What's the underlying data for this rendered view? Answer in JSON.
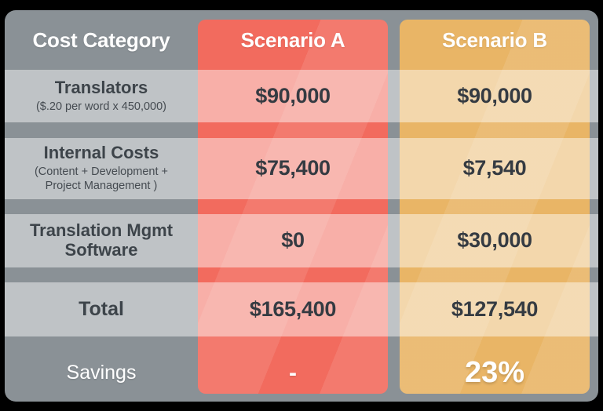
{
  "table": {
    "header": {
      "category": "Cost Category",
      "scenario_a": "Scenario A",
      "scenario_b": "Scenario B"
    },
    "rows": [
      {
        "label": "Translators",
        "sublabel": "($.20 per word x 450,000)",
        "scenario_a": "$90,000",
        "scenario_b": "$90,000"
      },
      {
        "label": "Internal Costs",
        "sublabel": "(Content + Development + Project Management )",
        "scenario_a": "$75,400",
        "scenario_b": "$7,540"
      },
      {
        "label": "Translation Mgmt Software",
        "sublabel": "",
        "scenario_a": "$0",
        "scenario_b": "$30,000"
      },
      {
        "label": "Total",
        "sublabel": "",
        "scenario_a": "$165,400",
        "scenario_b": "$127,540"
      }
    ],
    "savings": {
      "label": "Savings",
      "scenario_a": "-",
      "scenario_b": "23%"
    }
  },
  "colors": {
    "background": "#000000",
    "card_gray": "#8a9196",
    "row_band_gray": "#c3c7ca",
    "scenario_a_red": "#f26b5e",
    "scenario_a_light": "#f8aea7",
    "scenario_b_yellow": "#e9b566",
    "scenario_b_light": "#f3dcb0",
    "header_text": "#ffffff",
    "value_text": "#353b42"
  },
  "chart_data": {
    "type": "table",
    "title": "Cost comparison: Scenario A vs Scenario B",
    "columns": [
      "Cost Category",
      "Scenario A",
      "Scenario B"
    ],
    "rows": [
      [
        "Translators ($.20 per word x 450,000)",
        "$90,000",
        "$90,000"
      ],
      [
        "Internal Costs (Content + Development + Project Management )",
        "$75,400",
        "$7,540"
      ],
      [
        "Translation Mgmt Software",
        "$0",
        "$30,000"
      ],
      [
        "Total",
        "$165,400",
        "$127,540"
      ],
      [
        "Savings",
        "-",
        "23%"
      ]
    ]
  }
}
